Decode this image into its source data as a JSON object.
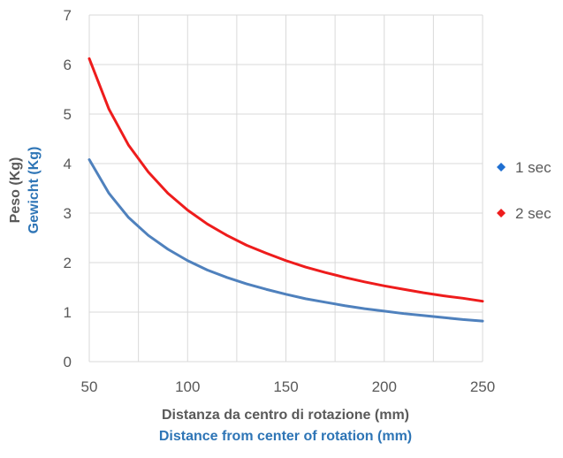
{
  "chart_data": {
    "type": "line",
    "xlabel": "Distanza da centro di rotazione (mm)",
    "xlabel2": "Distance from center of rotation (mm)",
    "ylabel": "Peso (Kg)",
    "ylabel2": "Gewicht (Kg)",
    "xlim": [
      50,
      250
    ],
    "ylim": [
      0,
      7
    ],
    "x_ticks": [
      50,
      100,
      150,
      200,
      250
    ],
    "y_ticks": [
      0,
      1,
      2,
      3,
      4,
      5,
      6,
      7
    ],
    "grid": true,
    "legend_position": "right",
    "x": [
      50,
      60,
      70,
      80,
      90,
      100,
      110,
      120,
      130,
      140,
      150,
      160,
      170,
      180,
      190,
      200,
      210,
      220,
      230,
      240,
      250
    ],
    "series": [
      {
        "name": "1 sec",
        "color": "#4f81bd",
        "marker_color": "#1f6fd1",
        "values": [
          4.08,
          3.4,
          2.91,
          2.55,
          2.27,
          2.04,
          1.85,
          1.7,
          1.57,
          1.46,
          1.36,
          1.27,
          1.2,
          1.13,
          1.07,
          1.02,
          0.97,
          0.93,
          0.89,
          0.85,
          0.82
        ]
      },
      {
        "name": "2 sec",
        "color": "#ee1c1c",
        "marker_color": "#ee1c1c",
        "values": [
          6.12,
          5.1,
          4.37,
          3.83,
          3.4,
          3.06,
          2.78,
          2.55,
          2.35,
          2.19,
          2.04,
          1.91,
          1.8,
          1.7,
          1.61,
          1.53,
          1.46,
          1.39,
          1.33,
          1.28,
          1.22
        ]
      }
    ]
  },
  "colors": {
    "axis_text": "#595959",
    "label_dark": "#595959",
    "label_blue": "#2e75b6",
    "grid": "#d9d9d9"
  }
}
